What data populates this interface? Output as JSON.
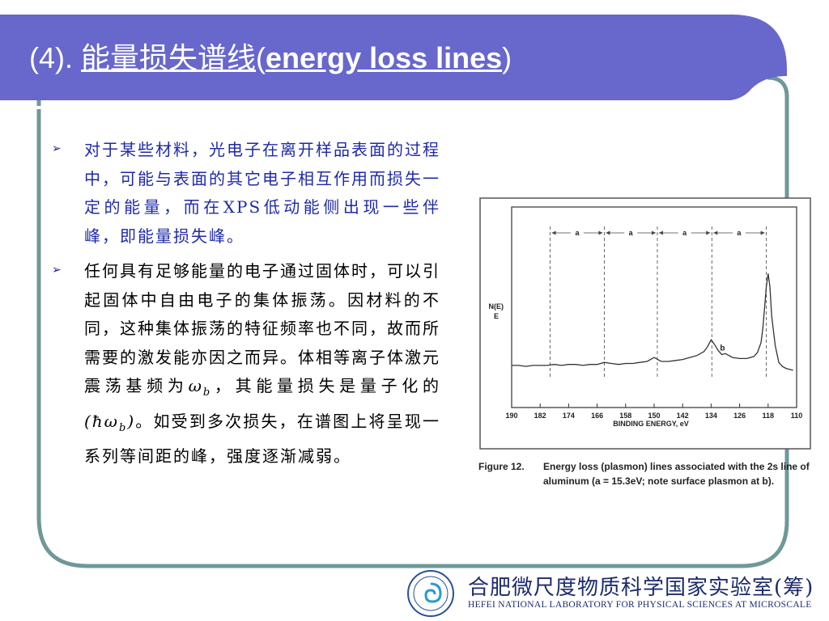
{
  "slide": {
    "title": {
      "prefix": "(4). ",
      "chinese": "能量损失谱线",
      "open_paren": "(",
      "english": "energy loss lines",
      "close_paren": ")"
    },
    "bullets": [
      {
        "text": "对于某些材料，光电子在离开样品表面的过程中，可能与表面的其它电子相互作用而损失一定的能量，而在XPS低动能侧出现一些伴峰，即能量损失峰。"
      },
      {
        "text_before_wb": "任何具有足够能量的电子通过固体时，可以引起固体中自由电子的集体振荡。因材料的不同，这种集体振荡的特征频率也不同，故而所需要的激发能亦因之而异。体相等离子体激元震荡基频为",
        "omega": "ω",
        "sub_b": "b",
        "text_mid": "，其能量损失是量子化的",
        "hbar_open": "(ħω",
        "hbar_sub": "b",
        "hbar_close": ")",
        "text_after": "。如受到多次损失，在谱图上将呈现一系列等间距的峰，强度逐渐减弱。"
      }
    ],
    "bullet_marker": "➢",
    "colors": {
      "title_banner": "#6767cc",
      "frame_border": "#6f9898",
      "bullet1_text": "#1f2aa8",
      "bullet2_text": "#000000"
    }
  },
  "figure_caption": {
    "label": "Figure 12.",
    "text": "Energy loss (plasmon) lines associated with the 2s line of aluminum   (a = 15.3eV; note surface plasmon at b)."
  },
  "logo": {
    "cn_text": "合肥微尺度物质科学国家实验室(筹)",
    "en_text": "HEFEI NATIONAL LABORATORY FOR PHYSICAL SCIENCES AT MICROSCALE"
  },
  "chart_data": {
    "type": "line",
    "ylabel": "N(E)\nE",
    "xlabel": "BINDING ENERGY, eV",
    "xlim": [
      190,
      110
    ],
    "x_reversed": true,
    "x_ticks": [
      190,
      182,
      174,
      166,
      158,
      150,
      142,
      134,
      126,
      118,
      110
    ],
    "y_ticks_shown": false,
    "grid": false,
    "spacing_label": "a",
    "spacing_markers_x": [
      179.2,
      164.0,
      149.1,
      133.8,
      118.5
    ],
    "annotation": {
      "text": "b",
      "x": 131.5,
      "y": 0.2
    },
    "series": [
      {
        "x": [
          190,
          188,
          186,
          184,
          182,
          180,
          178,
          176,
          174,
          172,
          170,
          168,
          166,
          164,
          162,
          160,
          158,
          156,
          154,
          152,
          151,
          150,
          149,
          148,
          146,
          144,
          142,
          140,
          138,
          136,
          135,
          134,
          133,
          132,
          131,
          130,
          129,
          128,
          126,
          124,
          122,
          121,
          120,
          119.5,
          119,
          118.5,
          118,
          117.5,
          117,
          116,
          115,
          114,
          113,
          112,
          111
        ],
        "y": [
          0.05,
          0.05,
          0.04,
          0.05,
          0.05,
          0.05,
          0.06,
          0.05,
          0.06,
          0.06,
          0.05,
          0.06,
          0.06,
          0.08,
          0.07,
          0.06,
          0.07,
          0.07,
          0.08,
          0.09,
          0.11,
          0.13,
          0.11,
          0.09,
          0.09,
          0.1,
          0.11,
          0.13,
          0.15,
          0.19,
          0.24,
          0.31,
          0.26,
          0.2,
          0.16,
          0.17,
          0.15,
          0.13,
          0.12,
          0.12,
          0.14,
          0.18,
          0.28,
          0.42,
          0.63,
          0.85,
          0.98,
          0.85,
          0.55,
          0.25,
          0.08,
          0.04,
          0.02,
          0.01,
          0.0
        ]
      }
    ]
  }
}
